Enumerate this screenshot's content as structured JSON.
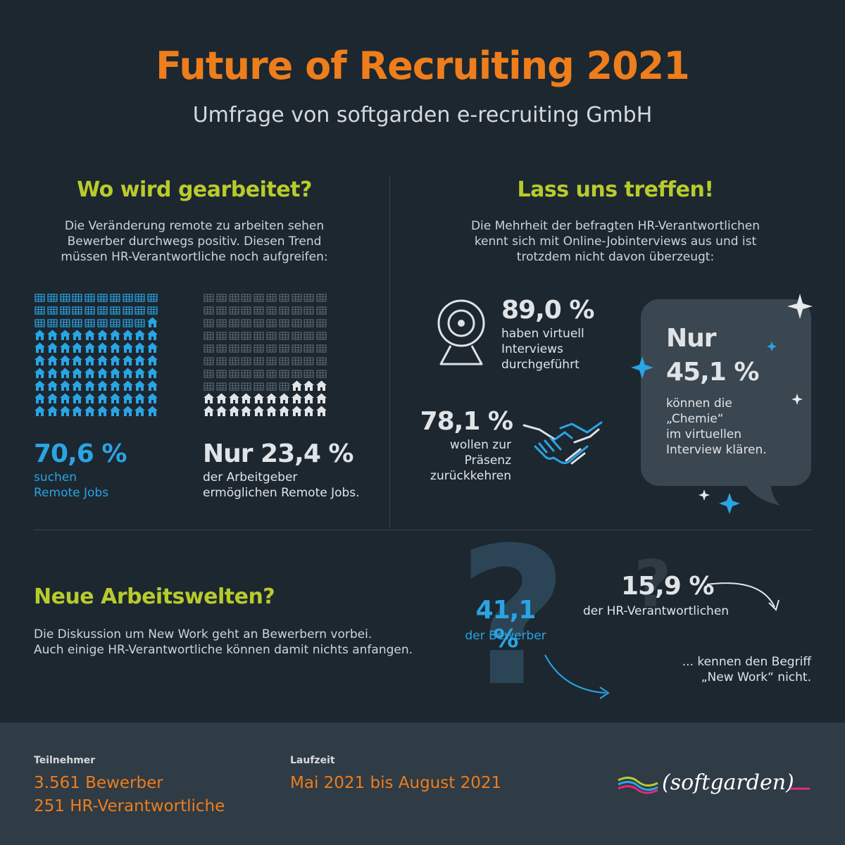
{
  "header": {
    "title": "Future of Recruiting 2021",
    "subtitle": "Umfrage von softgarden e-recruiting GmbH"
  },
  "left": {
    "heading": "Wo wird gearbeitet?",
    "intro": [
      "Die Veränderung remote zu arbeiten sehen",
      "Bewerber durchwegs positiv. Diesen Trend",
      "müssen HR-Verantwortliche noch aufgreifen:"
    ],
    "stat_a": {
      "value": "70,6 %",
      "label_1": "suchen",
      "label_2": "Remote Jobs",
      "houses": 71,
      "offices": 29,
      "house_color": "#2aa4e4",
      "office_color": "#2aa4e4"
    },
    "stat_b": {
      "value": "Nur 23,4 %",
      "label_1": "der Arbeitgeber",
      "label_2": "ermöglichen Remote Jobs.",
      "houses": 23,
      "offices": 77,
      "house_color": "#e1e4e6",
      "office_color": "#596470"
    }
  },
  "right": {
    "heading": "Lass uns treffen!",
    "intro": [
      "Die Mehrheit der befragten HR-Verantwortlichen",
      "kennt sich mit Online-Jobinterviews aus und ist",
      "trotzdem nicht davon überzeugt:"
    ],
    "stat_virtual": {
      "value": "89,0 %",
      "l1": "haben virtuell",
      "l2": "Interviews",
      "l3": "durchgeführt"
    },
    "stat_return": {
      "value": "78,1 %",
      "l1": "wollen zur",
      "l2": "Präsenz",
      "l3": "zurückkehren"
    },
    "stat_chemie": {
      "prefix": "Nur",
      "value": "45,1 %",
      "l1": "können die",
      "l2": "„Chemie“",
      "l3": "im virtuellen",
      "l4": "Interview klären."
    }
  },
  "newwork": {
    "heading": "Neue Arbeitswelten?",
    "text_1": "Die Diskussion um New Work geht an Bewerbern vorbei.",
    "text_2": "Auch einige HR-Verantwortliche können damit nichts anfangen.",
    "stat_bewerber": {
      "value": "41,1 %",
      "label": "der Bewerber"
    },
    "stat_hr": {
      "value": "15,9 %",
      "label": "der HR-Verantwortlichen"
    },
    "conclusion_1": "... kennen den Begriff",
    "conclusion_2": "„New Work“ nicht."
  },
  "footer": {
    "participants_label": "Teilnehmer",
    "participants_1": "3.561 Bewerber",
    "participants_2": "251 HR-Verantwortliche",
    "duration_label": "Laufzeit",
    "duration": "Mai 2021 bis August 2021",
    "logo_text": "softgarden"
  },
  "colors": {
    "accent": "#ee7d1c",
    "green": "#b8cb2c",
    "blue": "#2aa4e4",
    "bg": "#1c2730"
  }
}
